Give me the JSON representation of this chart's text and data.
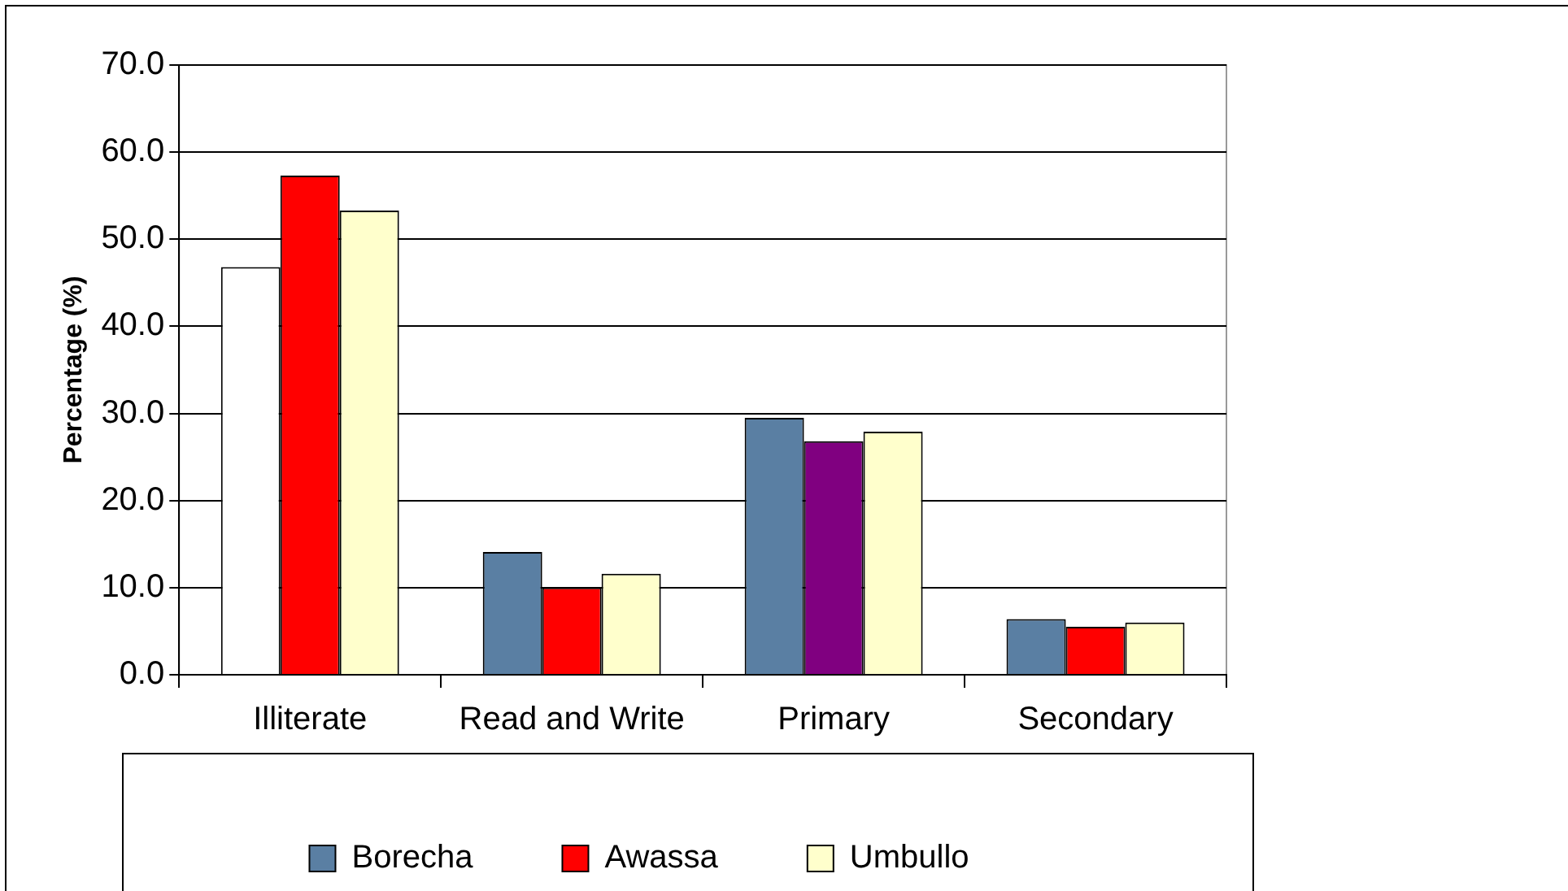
{
  "chart_data": {
    "type": "bar",
    "ylabel": "Percentage (%)",
    "categories": [
      "Illiterate",
      "Read and Write",
      "Primary",
      "Secondary"
    ],
    "series": [
      {
        "name": "Borecha",
        "color": "#5a7fa3",
        "colors": [
          "#ffffff",
          "#5a7fa3",
          "#5a7fa3",
          "#5a7fa3"
        ],
        "values": [
          46.8,
          14.1,
          29.5,
          6.4
        ]
      },
      {
        "name": "Awassa",
        "color": "#ff0000",
        "colors": [
          "#ff0000",
          "#ff0000",
          "#800080",
          "#ff0000"
        ],
        "values": [
          57.3,
          10.0,
          26.8,
          5.5
        ]
      },
      {
        "name": "Umbullo",
        "color": "#ffffcc",
        "values": [
          53.3,
          11.6,
          27.9,
          6.0
        ]
      }
    ],
    "ylim": [
      0,
      70
    ],
    "yticks": [
      {
        "value": 0,
        "label": "0.0"
      },
      {
        "value": 10,
        "label": "10.0"
      },
      {
        "value": 20,
        "label": "20.0"
      },
      {
        "value": 30,
        "label": "30.0"
      },
      {
        "value": 40,
        "label": "40.0"
      },
      {
        "value": 50,
        "label": "50.0"
      },
      {
        "value": 60,
        "label": "60.0"
      },
      {
        "value": 70,
        "label": "70.0"
      }
    ],
    "grid": "y",
    "legend": "bottom"
  }
}
